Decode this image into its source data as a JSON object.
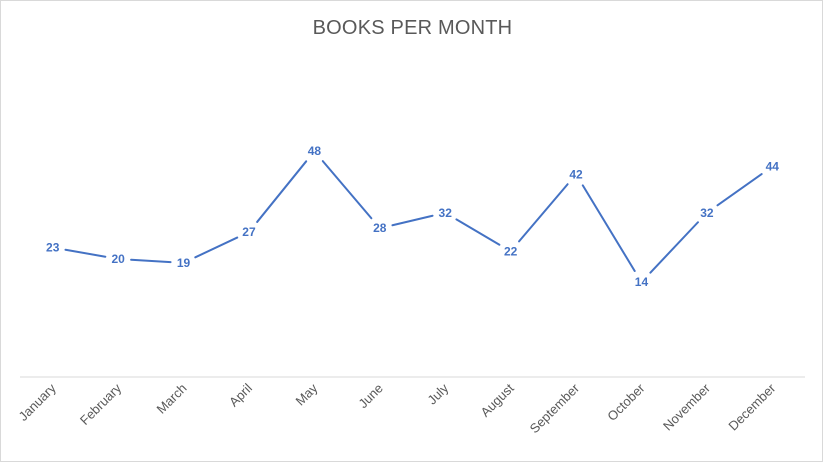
{
  "chart_data": {
    "type": "line",
    "title": "BOOKS PER MONTH",
    "categories": [
      "January",
      "February",
      "March",
      "April",
      "May",
      "June",
      "July",
      "August",
      "September",
      "October",
      "November",
      "December"
    ],
    "series": [
      {
        "values": [
          23,
          20,
          19,
          27,
          48,
          28,
          32,
          22,
          42,
          14,
          32,
          44
        ],
        "color": "#4472c4"
      }
    ],
    "data_labels": true,
    "grid": false,
    "legend": "none",
    "xlabel": "",
    "ylabel": ""
  }
}
